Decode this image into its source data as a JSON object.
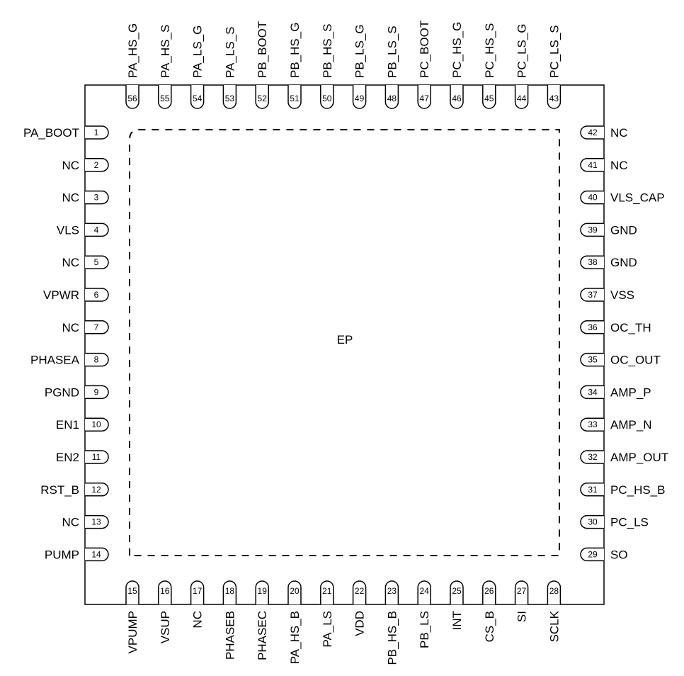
{
  "ep_label": "EP",
  "pins": {
    "left": [
      {
        "num": "1",
        "name": "PA_BOOT"
      },
      {
        "num": "2",
        "name": "NC"
      },
      {
        "num": "3",
        "name": "NC"
      },
      {
        "num": "4",
        "name": "VLS"
      },
      {
        "num": "5",
        "name": "NC"
      },
      {
        "num": "6",
        "name": "VPWR"
      },
      {
        "num": "7",
        "name": "NC"
      },
      {
        "num": "8",
        "name": "PHASEA"
      },
      {
        "num": "9",
        "name": "PGND"
      },
      {
        "num": "10",
        "name": "EN1"
      },
      {
        "num": "11",
        "name": "EN2"
      },
      {
        "num": "12",
        "name": "RST_B"
      },
      {
        "num": "13",
        "name": "NC"
      },
      {
        "num": "14",
        "name": "PUMP"
      }
    ],
    "bottom": [
      {
        "num": "15",
        "name": "VPUMP"
      },
      {
        "num": "16",
        "name": "VSUP"
      },
      {
        "num": "17",
        "name": "NC"
      },
      {
        "num": "18",
        "name": "PHASEB"
      },
      {
        "num": "19",
        "name": "PHASEC"
      },
      {
        "num": "20",
        "name": "PA_HS_B"
      },
      {
        "num": "21",
        "name": "PA_LS"
      },
      {
        "num": "22",
        "name": "VDD"
      },
      {
        "num": "23",
        "name": "PB_HS_B"
      },
      {
        "num": "24",
        "name": "PB_LS"
      },
      {
        "num": "25",
        "name": "INT"
      },
      {
        "num": "26",
        "name": "CS_B"
      },
      {
        "num": "27",
        "name": "SI"
      },
      {
        "num": "28",
        "name": "SCLK"
      }
    ],
    "right": [
      {
        "num": "42",
        "name": "NC"
      },
      {
        "num": "41",
        "name": "NC"
      },
      {
        "num": "40",
        "name": "VLS_CAP"
      },
      {
        "num": "39",
        "name": "GND"
      },
      {
        "num": "38",
        "name": "GND"
      },
      {
        "num": "37",
        "name": "VSS"
      },
      {
        "num": "36",
        "name": "OC_TH"
      },
      {
        "num": "35",
        "name": "OC_OUT"
      },
      {
        "num": "34",
        "name": "AMP_P"
      },
      {
        "num": "33",
        "name": "AMP_N"
      },
      {
        "num": "32",
        "name": "AMP_OUT"
      },
      {
        "num": "31",
        "name": "PC_HS_B"
      },
      {
        "num": "30",
        "name": "PC_LS"
      },
      {
        "num": "29",
        "name": "SO"
      }
    ],
    "top": [
      {
        "num": "56",
        "name": "PA_HS_G"
      },
      {
        "num": "55",
        "name": "PA_HS_S"
      },
      {
        "num": "54",
        "name": "PA_LS_G"
      },
      {
        "num": "53",
        "name": "PA_LS_S"
      },
      {
        "num": "52",
        "name": "PB_BOOT"
      },
      {
        "num": "51",
        "name": "PB_HS_G"
      },
      {
        "num": "50",
        "name": "PB_HS_S"
      },
      {
        "num": "49",
        "name": "PB_LS_G"
      },
      {
        "num": "48",
        "name": "PB_LS_S"
      },
      {
        "num": "47",
        "name": "PC_BOOT"
      },
      {
        "num": "46",
        "name": "PC_HS_G"
      },
      {
        "num": "45",
        "name": "PC_HS_S"
      },
      {
        "num": "44",
        "name": "PC_LS_G"
      },
      {
        "num": "43",
        "name": "PC_LS_S"
      }
    ]
  }
}
